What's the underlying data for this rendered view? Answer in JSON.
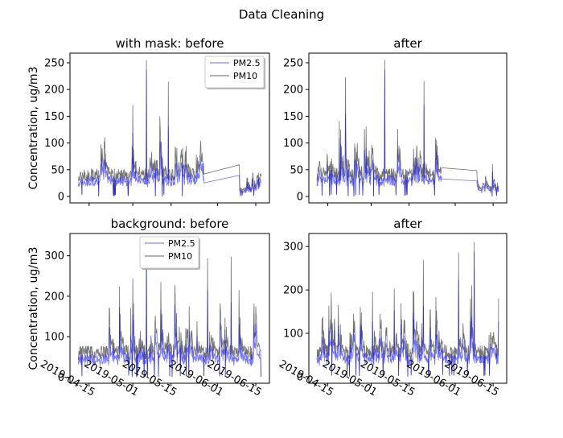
{
  "figure": {
    "suptitle": "Data Cleaning",
    "ylabel": "Concentration, ug/m3"
  },
  "chart_data": [
    {
      "type": "line",
      "title": "with mask: before",
      "ylabel": "Concentration, ug/m3",
      "ylim": [
        -12,
        268
      ],
      "yticks": [
        0,
        50,
        100,
        150,
        200,
        250
      ],
      "legend": {
        "position": "top-right"
      },
      "series": [
        {
          "name": "PM2.5",
          "color": "#0000ff"
        },
        {
          "name": "PM10",
          "color": "#000000"
        }
      ],
      "data_summary": {
        "baseline": 40,
        "max_peak": 255,
        "gap_from": "2019-05-27",
        "gap_to": "2019-06-09"
      }
    },
    {
      "type": "line",
      "title": "after",
      "ylim": [
        -12,
        268
      ],
      "yticks": [
        0,
        50,
        100,
        150,
        200,
        250
      ],
      "series": [
        {
          "color": "#0000ff"
        },
        {
          "color": "#000000"
        }
      ],
      "data_summary": {
        "baseline": 40,
        "max_peak": 255
      }
    },
    {
      "type": "line",
      "title": "background: before",
      "ylabel": "Concentration, ug/m3",
      "ylim": [
        -15,
        355
      ],
      "yticks": [
        0,
        100,
        200,
        300
      ],
      "legend": {
        "position": "top-center"
      },
      "series": [
        {
          "name": "PM2.5",
          "color": "#0000ff"
        },
        {
          "name": "PM10",
          "color": "#000000"
        }
      ],
      "data_summary": {
        "baseline": 60,
        "max_peak": 340
      }
    },
    {
      "type": "line",
      "title": "after",
      "ylim": [
        -15,
        330
      ],
      "yticks": [
        0,
        100,
        200,
        300
      ],
      "series": [
        {
          "color": "#0000ff"
        },
        {
          "color": "#000000"
        }
      ],
      "data_summary": {
        "baseline": 55,
        "max_peak": 310
      }
    }
  ],
  "xaxis": {
    "ticks": [
      "2019-04-15",
      "2019-05-01",
      "2019-05-15",
      "2019-06-01",
      "2019-06-15"
    ],
    "xlim": [
      "2019-04-08",
      "2019-06-20"
    ]
  }
}
